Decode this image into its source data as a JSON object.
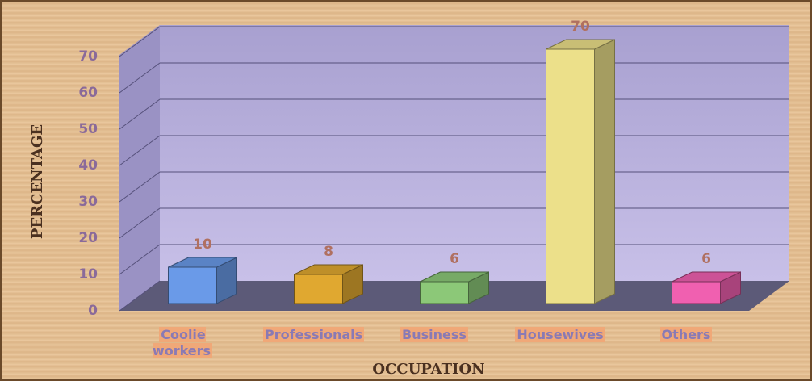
{
  "chart_data": {
    "type": "bar3d",
    "xlabel": "OCCUPATION",
    "ylabel": "PERCENTAGE",
    "categories": [
      "Coolie workers",
      "Professionals",
      "Business",
      "Housewives",
      "Others"
    ],
    "values": [
      10,
      8,
      6,
      70,
      6
    ],
    "colors": [
      "#6a9ae8",
      "#e0a830",
      "#8cc878",
      "#ece08a",
      "#f060b0"
    ],
    "ylim": [
      0,
      70
    ],
    "yticks": [
      0,
      10,
      20,
      30,
      40,
      50,
      60,
      70
    ],
    "grid": true
  }
}
